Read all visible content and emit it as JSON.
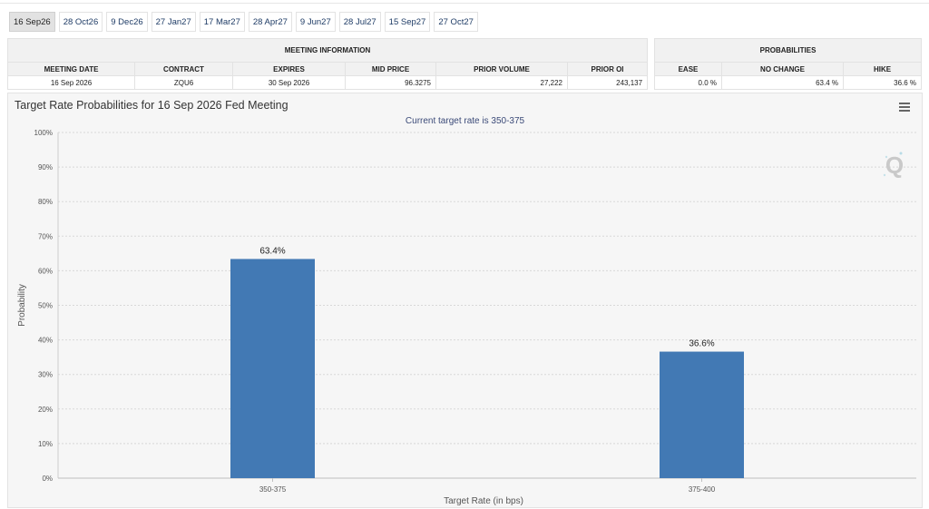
{
  "tabs": [
    "16 Sep26",
    "28 Oct26",
    "9 Dec26",
    "27 Jan27",
    "17 Mar27",
    "28 Apr27",
    "9 Jun27",
    "28 Jul27",
    "15 Sep27",
    "27 Oct27"
  ],
  "active_tab": "16 Sep26",
  "meeting_info": {
    "header": "MEETING INFORMATION",
    "columns": [
      "MEETING DATE",
      "CONTRACT",
      "EXPIRES",
      "MID PRICE",
      "PRIOR VOLUME",
      "PRIOR OI"
    ],
    "row": [
      "16 Sep 2026",
      "ZQU6",
      "30 Sep 2026",
      "96.3275",
      "27,222",
      "243,137"
    ]
  },
  "probabilities": {
    "header": "PROBABILITIES",
    "columns": [
      "EASE",
      "NO CHANGE",
      "HIKE"
    ],
    "row": [
      "0.0 %",
      "63.4 %",
      "36.6 %"
    ]
  },
  "chart": {
    "title": "Target Rate Probabilities for 16 Sep 2026 Fed Meeting",
    "subtitle": "Current target rate is 350-375"
  },
  "chart_data": {
    "type": "bar",
    "title": "Target Rate Probabilities for 16 Sep 2026 Fed Meeting",
    "subtitle": "Current target rate is 350-375",
    "categories": [
      "350-375",
      "375-400"
    ],
    "values": [
      63.4,
      36.6
    ],
    "data_labels": [
      "63.4%",
      "36.6%"
    ],
    "xlabel": "Target Rate (in bps)",
    "ylabel": "Probability",
    "ylim": [
      0,
      100
    ],
    "yticks": [
      "0%",
      "10%",
      "20%",
      "30%",
      "40%",
      "50%",
      "60%",
      "70%",
      "80%",
      "90%",
      "100%"
    ],
    "grid": true,
    "bar_color": "#4279b4"
  }
}
